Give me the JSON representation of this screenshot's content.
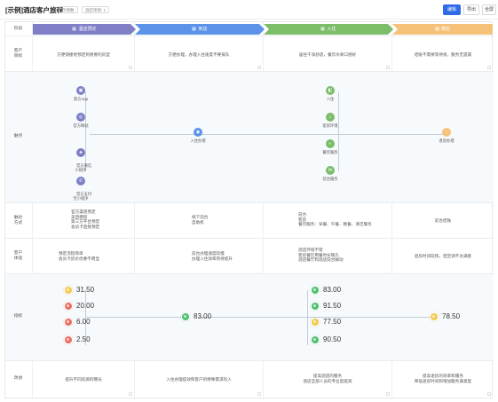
{
  "header": {
    "title": "[示例]酒店客户旅程",
    "tags": [
      "示例数",
      "酒店项目: 1"
    ],
    "buttons": {
      "edit": "编辑",
      "export": "导出",
      "fullscreen": "全屏"
    }
  },
  "colors": {
    "purple": "#7f7fc8",
    "blue": "#5b93e8",
    "green": "#7cbd6a",
    "orange": "#f6c27a",
    "primary": "#2e6be6"
  },
  "row_labels": {
    "stage": "阶段",
    "goal": "客户\n目标",
    "touchpoint": "触点",
    "channel": "触达\n方式",
    "experience": "客户\n体验",
    "metric": "指标",
    "opportunity": "改进"
  },
  "stages": [
    {
      "label": "酒店预定",
      "color": "#7f7fc8"
    },
    {
      "label": "到店",
      "color": "#5b93e8"
    },
    {
      "label": "入住",
      "color": "#7cbd6a"
    },
    {
      "label": "离店",
      "color": "#f6c27a"
    }
  ],
  "goals": [
    "方便快捷地预定到想要的房型",
    "方便办理，办理入住速度不要排队",
    "居住干净舒适，餐饮水果口感好",
    "结账不需要等待很，服务无遗漏"
  ],
  "touchpoints": {
    "booking": [
      {
        "label": "第方App",
        "icon": "app-icon"
      },
      {
        "label": "官方网站",
        "icon": "globe-icon"
      },
      {
        "label": "官方微信\n小程序",
        "icon": "wechat-icon"
      },
      {
        "label": "官方支付\n宝小程序",
        "icon": "phone-icon"
      }
    ],
    "arrive": [
      {
        "label": "入住办理",
        "icon": "checkin-icon"
      }
    ],
    "stay": [
      {
        "label": "入住",
        "icon": "door-icon"
      },
      {
        "label": "客房环境",
        "icon": "room-icon"
      },
      {
        "label": "餐饮服务",
        "icon": "food-icon"
      },
      {
        "label": "前台服务",
        "icon": "desk-icon"
      }
    ],
    "leave": [
      {
        "label": "退房办理",
        "icon": "checkout-icon"
      }
    ]
  },
  "channels": [
    [
      "官方渠道预定",
      "美团携程",
      "第三方平台预定",
      "会员卡直接预定"
    ],
    [
      "线下前台",
      "自助机",
      "前台办理",
      "自助入住"
    ],
    [
      "前台",
      "客房",
      "餐饮服务：早餐、午餐、晚餐、清洁服务"
    ],
    [
      "前台结账"
    ]
  ],
  "experiences": [
    [
      "预定流程简单",
      "会员卡房价优惠不明显"
    ],
    [
      "前台办理速度较慢",
      "办理入住效率有待提升"
    ],
    [
      "酒店环境不错",
      "客房餐饮用餐时长略久",
      "酒店餐厅和酒店前台联动"
    ],
    [
      "退房时间较快，但空调不太满意"
    ]
  ],
  "metrics": {
    "booking": [
      {
        "value": "31.50",
        "status": "yellow"
      },
      {
        "value": "20.00",
        "status": "red"
      },
      {
        "value": "6.00",
        "status": "red"
      },
      {
        "value": "2.50",
        "status": "red"
      }
    ],
    "arrive": [
      {
        "value": "83.00",
        "status": "green"
      }
    ],
    "stay": [
      {
        "value": "83.00",
        "status": "green"
      },
      {
        "value": "91.50",
        "status": "green"
      },
      {
        "value": "77.50",
        "status": "yellow"
      },
      {
        "value": "90.50",
        "status": "green"
      }
    ],
    "leave": [
      {
        "value": "78.50",
        "status": "yellow"
      }
    ]
  },
  "opportunities": [
    "提升不同房源的曝光",
    "入住办理提效和客户的特殊需求的入",
    "提高酒店的服务\n酒店全部人员的专业度提高",
    "提高退房的效率和服务\n降低退房时间和增加服务满意度"
  ]
}
